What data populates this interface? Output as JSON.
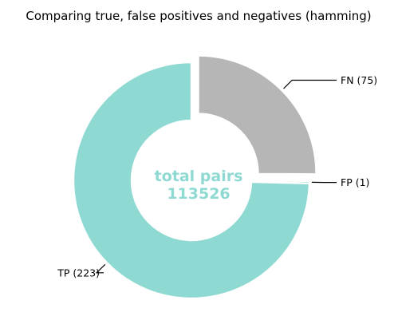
{
  "chart_data": {
    "type": "pie",
    "title": "Comparing true, false positives and negatives (hamming)",
    "center_text": [
      "total pairs",
      "113526"
    ],
    "slices": [
      {
        "label": "FN (75)",
        "value": 75,
        "color": "#b6b6b6",
        "exploded": true
      },
      {
        "label": "FP (1)",
        "value": 1,
        "color": "#8fd9d3",
        "exploded": false
      },
      {
        "label": "TP (223)",
        "value": 223,
        "color": "#8fd9d3",
        "exploded": false
      }
    ],
    "center_text_color": "#8fd9d3",
    "start": "top",
    "direction": "clockwise",
    "legend": "none",
    "grid": false
  }
}
